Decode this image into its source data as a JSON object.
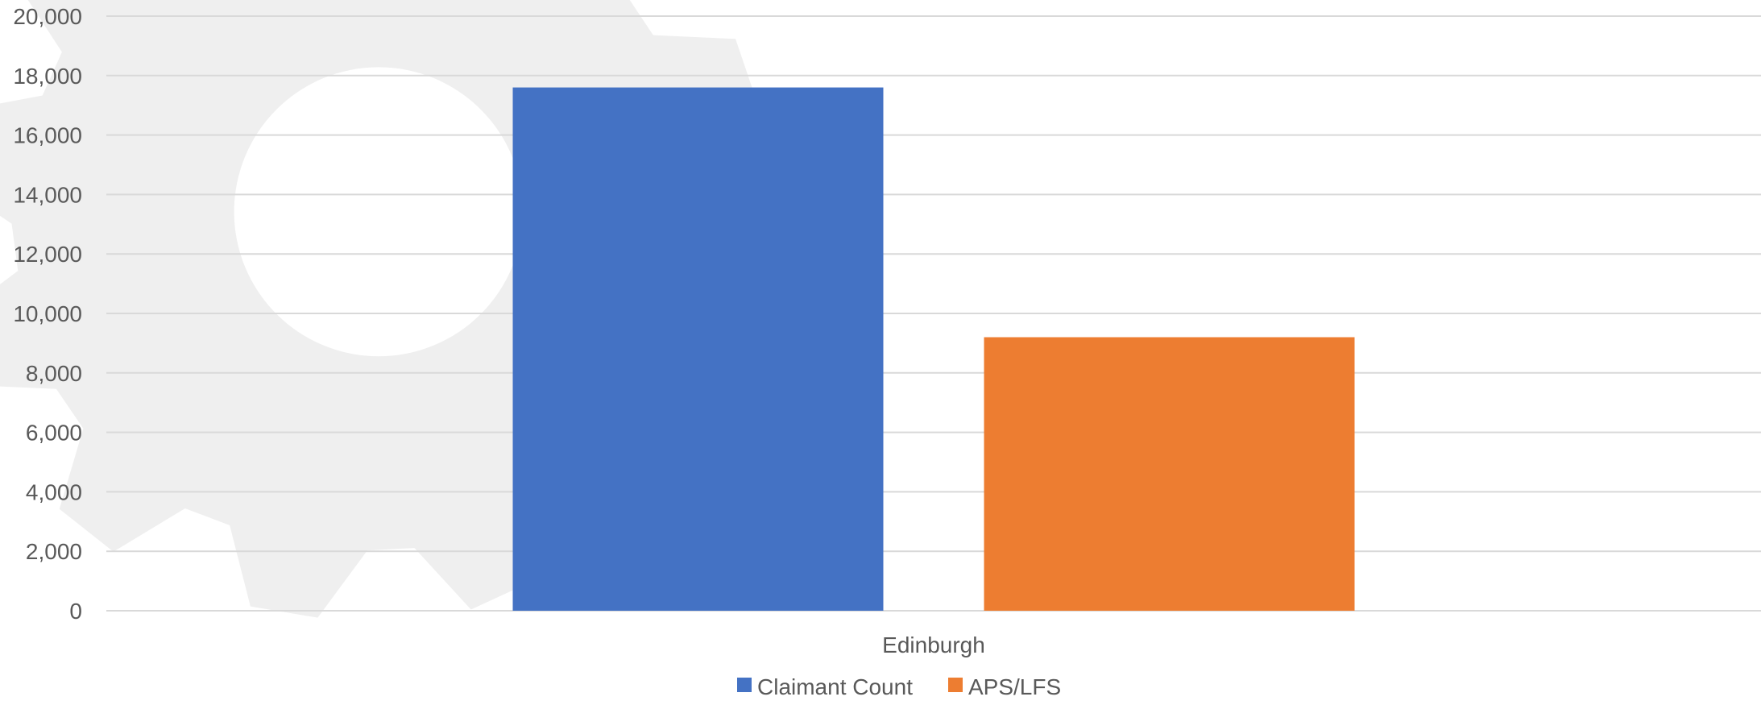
{
  "chart_data": {
    "type": "bar",
    "categories": [
      "Edinburgh"
    ],
    "series": [
      {
        "name": "Claimant Count",
        "values": [
          17600
        ],
        "color": "#4472C4"
      },
      {
        "name": "APS/LFS",
        "values": [
          9200
        ],
        "color": "#ED7D31"
      }
    ],
    "ylim": [
      0,
      20000
    ],
    "yticks": [
      0,
      2000,
      4000,
      6000,
      8000,
      10000,
      12000,
      14000,
      16000,
      18000,
      20000
    ],
    "ytick_labels": [
      "0",
      "2,000",
      "4,000",
      "6,000",
      "8,000",
      "10,000",
      "12,000",
      "14,000",
      "16,000",
      "18,000",
      "20,000"
    ],
    "grid": true,
    "legend_position": "bottom",
    "gridline_color": "#d9d9d9",
    "text_color": "#595959",
    "watermark": "gear-icon"
  }
}
